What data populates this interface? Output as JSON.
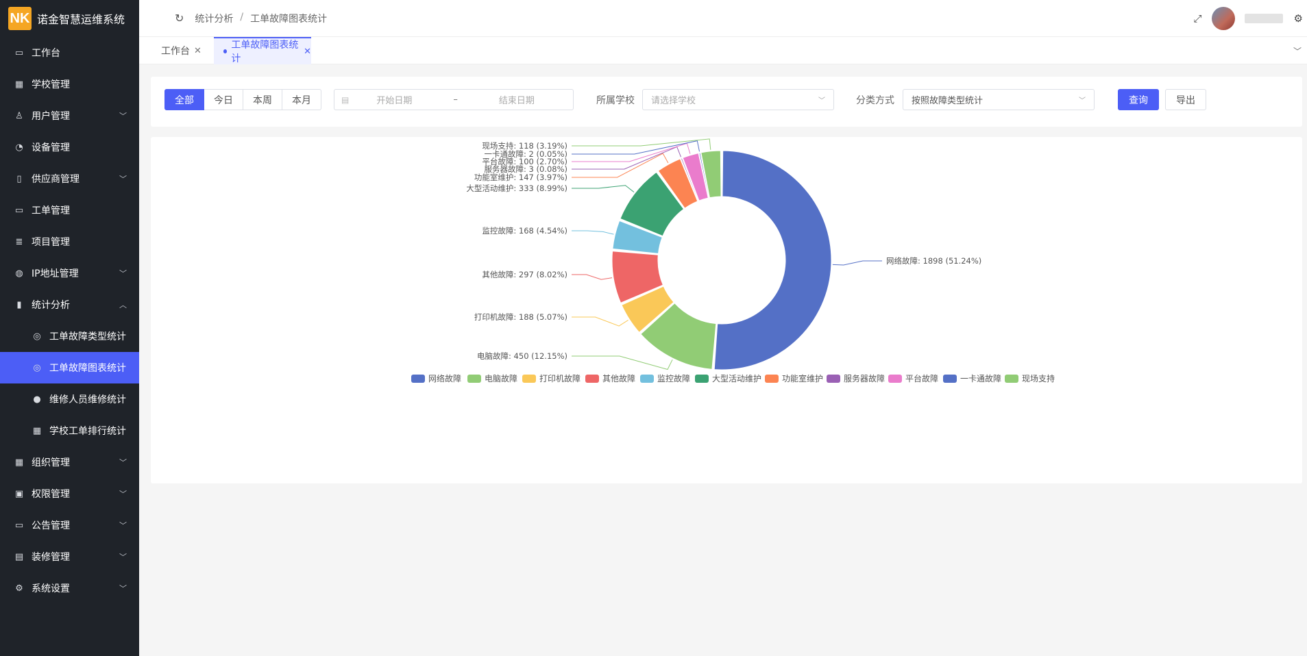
{
  "app": {
    "logo_text": "NK",
    "title": "诺金智慧运维系统"
  },
  "sidebar": {
    "items": [
      {
        "label": "工作台",
        "icon": "monitor-icon"
      },
      {
        "label": "学校管理",
        "icon": "building-icon"
      },
      {
        "label": "用户管理",
        "icon": "user-icon",
        "expandable": true
      },
      {
        "label": "设备管理",
        "icon": "device-icon"
      },
      {
        "label": "供应商管理",
        "icon": "bookmark-icon",
        "expandable": true
      },
      {
        "label": "工单管理",
        "icon": "inbox-icon"
      },
      {
        "label": "项目管理",
        "icon": "list-icon"
      },
      {
        "label": "IP地址管理",
        "icon": "globe-icon",
        "expandable": true
      },
      {
        "label": "统计分析",
        "icon": "bar-chart-icon",
        "expandable": true,
        "expanded": true
      },
      {
        "label": "工单故障类型统计",
        "icon": "dribbble-icon",
        "sub": true
      },
      {
        "label": "工单故障图表统计",
        "icon": "dribbble-icon",
        "sub": true,
        "active": true
      },
      {
        "label": "维修人员维修统计",
        "icon": "person-icon",
        "sub": true
      },
      {
        "label": "学校工单排行统计",
        "icon": "building-icon",
        "sub": true
      },
      {
        "label": "组织管理",
        "icon": "org-icon",
        "expandable": true
      },
      {
        "label": "权限管理",
        "icon": "lock-icon",
        "expandable": true
      },
      {
        "label": "公告管理",
        "icon": "message-icon",
        "expandable": true
      },
      {
        "label": "装修管理",
        "icon": "brush-icon",
        "expandable": true
      },
      {
        "label": "系统设置",
        "icon": "gear-icon",
        "expandable": true
      }
    ]
  },
  "header": {
    "breadcrumb": [
      "统计分析",
      "工单故障图表统计"
    ],
    "breadcrumb_sep": "/"
  },
  "tabs": [
    {
      "label": "工作台",
      "active": false
    },
    {
      "label": "工单故障图表统计",
      "active": true
    }
  ],
  "filter": {
    "range_buttons": [
      "全部",
      "今日",
      "本周",
      "本月"
    ],
    "selected_range": "全部",
    "start_placeholder": "开始日期",
    "end_placeholder": "结束日期",
    "range_sep": "–",
    "school_label": "所属学校",
    "school_placeholder": "请选择学校",
    "category_label": "分类方式",
    "category_value": "按照故障类型统计",
    "query_label": "查询",
    "export_label": "导出"
  },
  "chart_data": {
    "type": "pie",
    "donut": true,
    "legend_position": "bottom",
    "series": [
      {
        "name": "网络故障",
        "value": 1898,
        "percent": "51.24%",
        "color": "#5470c6"
      },
      {
        "name": "电脑故障",
        "value": 450,
        "percent": "12.15%",
        "color": "#91cc75"
      },
      {
        "name": "打印机故障",
        "value": 188,
        "percent": "5.07%",
        "color": "#fac858"
      },
      {
        "name": "其他故障",
        "value": 297,
        "percent": "8.02%",
        "color": "#ee6666"
      },
      {
        "name": "监控故障",
        "value": 168,
        "percent": "4.54%",
        "color": "#73c0de"
      },
      {
        "name": "大型活动维护",
        "value": 333,
        "percent": "8.99%",
        "color": "#3ba272"
      },
      {
        "name": "功能室维护",
        "value": 147,
        "percent": "3.97%",
        "color": "#fc8452"
      },
      {
        "name": "服务器故障",
        "value": 3,
        "percent": "0.08%",
        "color": "#9a60b4"
      },
      {
        "name": "平台故障",
        "value": 100,
        "percent": "2.70%",
        "color": "#ea7ccc"
      },
      {
        "name": "一卡通故障",
        "value": 2,
        "percent": "0.05%",
        "color": "#5470c6"
      },
      {
        "name": "现场支持",
        "value": 118,
        "percent": "3.19%",
        "color": "#91cc75"
      }
    ]
  }
}
